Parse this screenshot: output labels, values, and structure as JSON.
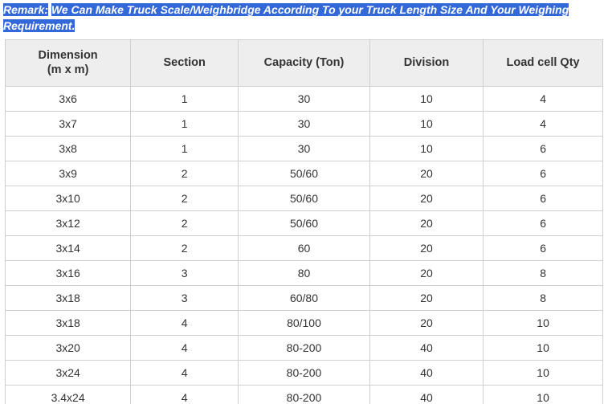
{
  "remark": {
    "label": "Remark:",
    "text_line1": "We Can Make Truck Scale/Weighbridge According To your Truck Length Size And Your Weighing",
    "text_line2": "Requirement."
  },
  "table": {
    "headers": {
      "dimension_l1": "Dimension",
      "dimension_l2": "(m x m)",
      "section": "Section",
      "capacity": "Capacity (Ton)",
      "division": "Division",
      "loadcell": "Load cell Qty"
    },
    "rows": [
      {
        "dimension": "3x6",
        "section": "1",
        "capacity": "30",
        "division": "10",
        "loadcell": "4"
      },
      {
        "dimension": "3x7",
        "section": "1",
        "capacity": "30",
        "division": "10",
        "loadcell": "4"
      },
      {
        "dimension": "3x8",
        "section": "1",
        "capacity": "30",
        "division": "10",
        "loadcell": "6"
      },
      {
        "dimension": "3x9",
        "section": "2",
        "capacity": "50/60",
        "division": "20",
        "loadcell": "6"
      },
      {
        "dimension": "3x10",
        "section": "2",
        "capacity": "50/60",
        "division": "20",
        "loadcell": "6"
      },
      {
        "dimension": "3x12",
        "section": "2",
        "capacity": "50/60",
        "division": "20",
        "loadcell": "6"
      },
      {
        "dimension": "3x14",
        "section": "2",
        "capacity": "60",
        "division": "20",
        "loadcell": "6"
      },
      {
        "dimension": "3x16",
        "section": "3",
        "capacity": "80",
        "division": "20",
        "loadcell": "8"
      },
      {
        "dimension": "3x18",
        "section": "3",
        "capacity": "60/80",
        "division": "20",
        "loadcell": "8"
      },
      {
        "dimension": "3x18",
        "section": "4",
        "capacity": "80/100",
        "division": "20",
        "loadcell": "10"
      },
      {
        "dimension": "3x20",
        "section": "4",
        "capacity": "80-200",
        "division": "40",
        "loadcell": "10"
      },
      {
        "dimension": "3x24",
        "section": "4",
        "capacity": "80-200",
        "division": "40",
        "loadcell": "10"
      },
      {
        "dimension": "3.4x24",
        "section": "4",
        "capacity": "80-200",
        "division": "40",
        "loadcell": "10"
      }
    ]
  },
  "style": {
    "highlight_bg": "#3368d8",
    "highlight_fg": "#ffffff",
    "header_bg": "#eeeeee",
    "border_color": "#cfcfcf",
    "text_color": "#333333"
  }
}
